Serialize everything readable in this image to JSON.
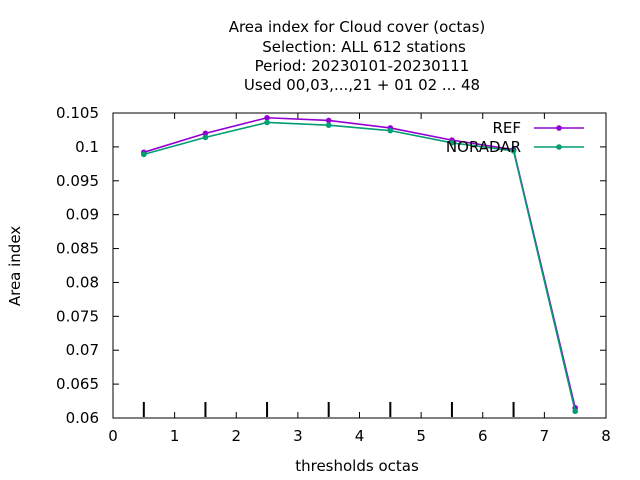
{
  "chart_data": {
    "type": "line",
    "title_lines": [
      "Area index  for Cloud cover (octas)",
      "Selection: ALL    612 stations",
      "Period: 20230101-20230111",
      "Used  00,03,...,21  + 01 02 ... 48"
    ],
    "xlabel": "thresholds octas",
    "ylabel": "Area index",
    "xlim": [
      0,
      8
    ],
    "ylim": [
      0.06,
      0.105
    ],
    "x_ticks": [
      0,
      1,
      2,
      3,
      4,
      5,
      6,
      7,
      8
    ],
    "x_tick_labels": [
      "0",
      "1",
      "2",
      "3",
      "4",
      "5",
      "6",
      "7",
      "8"
    ],
    "y_ticks": [
      0.06,
      0.065,
      0.07,
      0.075,
      0.08,
      0.085,
      0.09,
      0.095,
      0.1,
      0.105
    ],
    "y_tick_labels": [
      "0.06",
      "0.065",
      "0.07",
      "0.075",
      "0.08",
      "0.085",
      "0.09",
      "0.095",
      "0.1",
      "0.105"
    ],
    "grid": false,
    "legend_position": "top-right",
    "x": [
      0.5,
      1.5,
      2.5,
      3.5,
      4.5,
      5.5,
      6.5,
      7.5
    ],
    "series": [
      {
        "name": "REF",
        "color": "#9400d3",
        "values": [
          0.0992,
          0.102,
          0.1043,
          0.1039,
          0.1028,
          0.101,
          0.0996,
          0.0615
        ]
      },
      {
        "name": "NORADAR",
        "color": "#009e73",
        "values": [
          0.0989,
          0.1014,
          0.1036,
          0.1032,
          0.1024,
          0.1006,
          0.0994,
          0.061
        ]
      }
    ],
    "annotation_markers": {
      "x": [
        0.5,
        1.5,
        2.5,
        3.5,
        4.5,
        5.5,
        6.5
      ]
    }
  }
}
